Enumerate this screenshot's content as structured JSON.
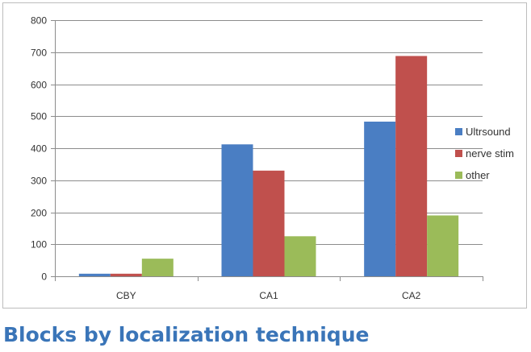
{
  "chart_data": {
    "type": "bar",
    "categories": [
      "CBY",
      "CA1",
      "CA2"
    ],
    "series": [
      {
        "name": "Ultrsound",
        "values": [
          8,
          412,
          483
        ]
      },
      {
        "name": "nerve stim",
        "values": [
          8,
          330,
          688
        ]
      },
      {
        "name": "other",
        "values": [
          55,
          125,
          190
        ]
      }
    ],
    "ylim": [
      0,
      800
    ],
    "yticks": [
      0,
      100,
      200,
      300,
      400,
      500,
      600,
      700,
      800
    ],
    "grid": true,
    "legend": "right",
    "colors": [
      "#4a7ec3",
      "#c0504d",
      "#9bbb59"
    ]
  },
  "caption": "Blocks by localization technique"
}
